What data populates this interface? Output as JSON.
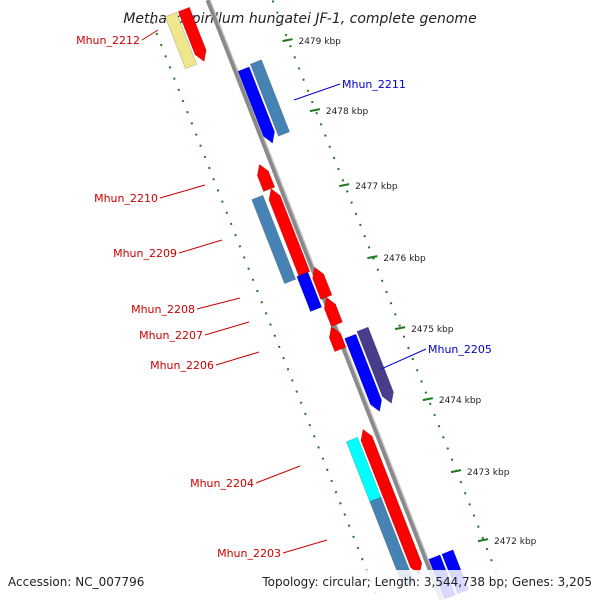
{
  "title": "Methanospirillum hungatei JF-1, complete genome",
  "footer": {
    "accession": "Accession: NC_007796",
    "topology": "Topology: circular; Length: 3,544,738 bp; Genes: 3,205"
  },
  "colors": {
    "backbone": "#8a8a8a",
    "tick": "#1e7a1e",
    "gene_red": "#ff0000",
    "gene_blue": "#0000ff",
    "gene_steel": "#4682b4",
    "gene_slate": "#483d8b",
    "gene_cyan": "#00ffff",
    "gene_khaki": "#f0e68c",
    "label_red": "#cc0000",
    "label_blue": "#0000cc"
  },
  "kbp_ticks": [
    "2479 kbp",
    "2478 kbp",
    "2477 kbp",
    "2476 kbp",
    "2475 kbp",
    "2474 kbp",
    "2473 kbp",
    "2472 kbp"
  ],
  "gene_labels": [
    {
      "text": "Mhun_2212",
      "side": "left",
      "color": "red"
    },
    {
      "text": "Mhun_2211",
      "side": "right",
      "color": "blue"
    },
    {
      "text": "Mhun_2210",
      "side": "left",
      "color": "red"
    },
    {
      "text": "Mhun_2209",
      "side": "left",
      "color": "red"
    },
    {
      "text": "Mhun_2208",
      "side": "left",
      "color": "red"
    },
    {
      "text": "Mhun_2207",
      "side": "left",
      "color": "red"
    },
    {
      "text": "Mhun_2206",
      "side": "left",
      "color": "red"
    },
    {
      "text": "Mhun_2205",
      "side": "right",
      "color": "blue"
    },
    {
      "text": "Mhun_2204",
      "side": "left",
      "color": "red"
    },
    {
      "text": "Mhun_2203",
      "side": "left",
      "color": "red"
    }
  ]
}
